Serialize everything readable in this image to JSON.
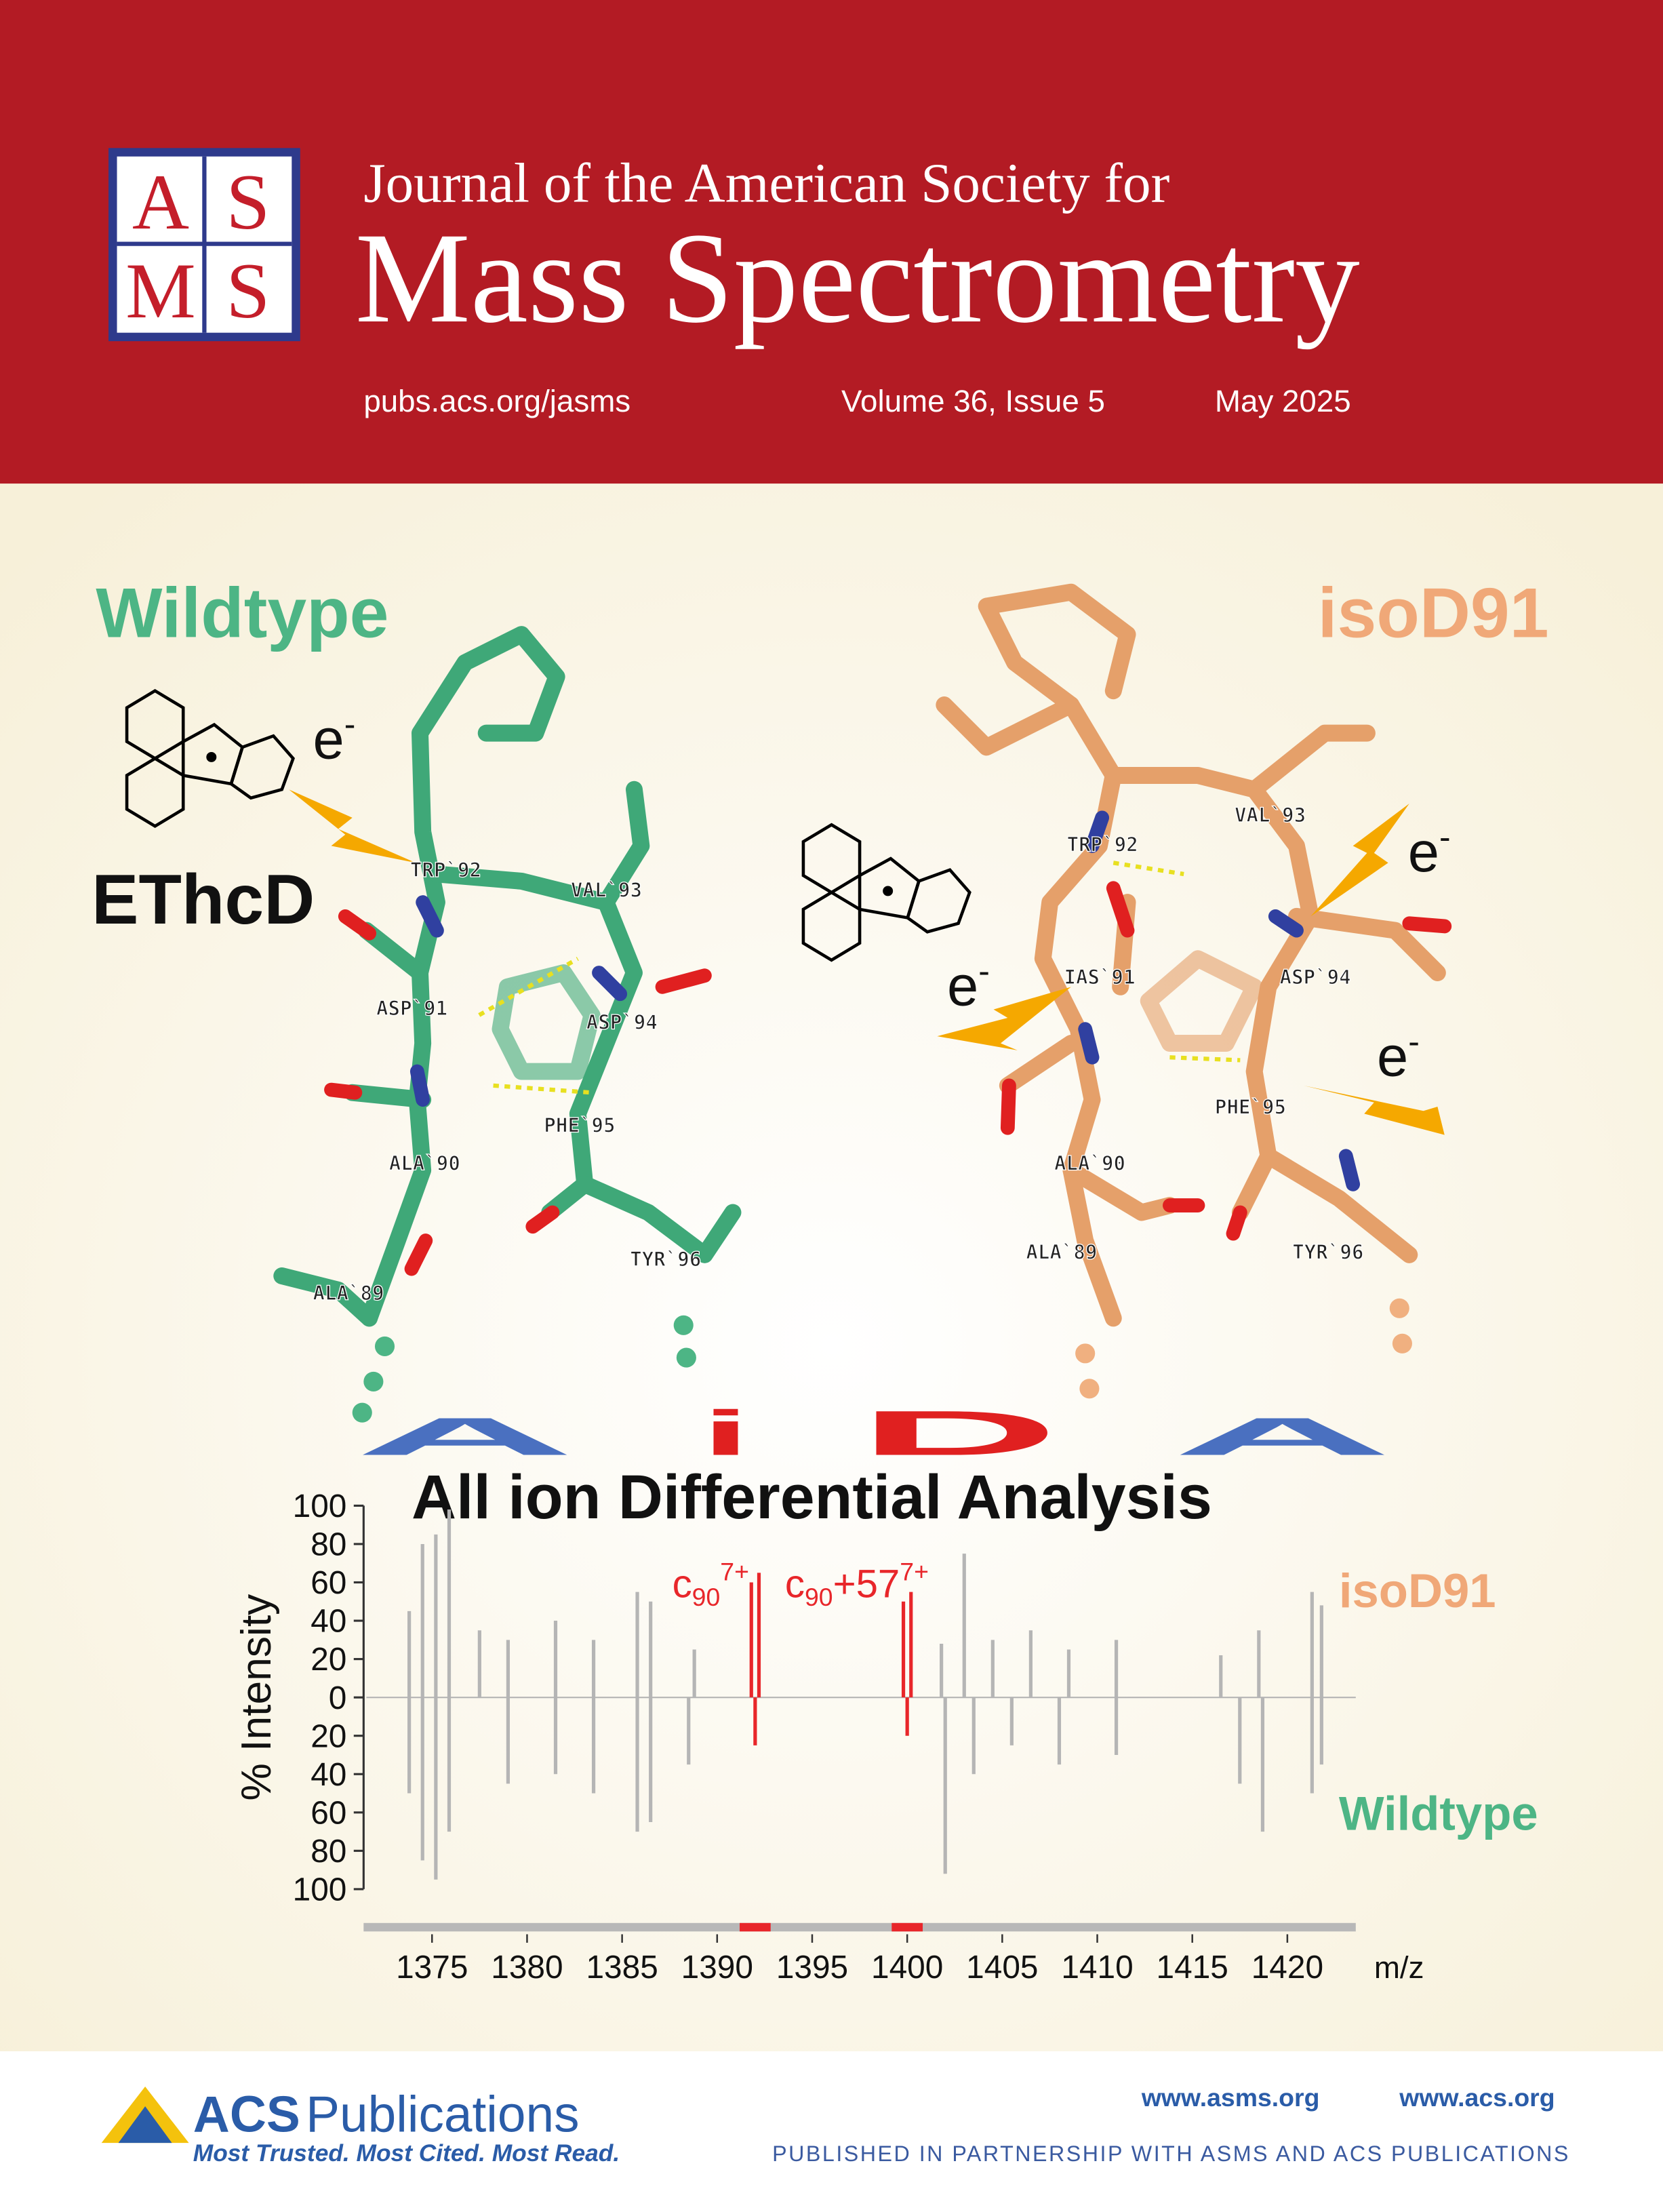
{
  "header": {
    "logo_letters": [
      "A",
      "S",
      "M",
      "S"
    ],
    "journal_line1": "Journal of the American Society for",
    "journal_line2": "Mass Spectrometry",
    "url": "pubs.acs.org/jasms",
    "volume": "Volume 36, Issue 5",
    "date": "May 2025"
  },
  "cover": {
    "left_label": "Wildtype",
    "right_label": "isoD91",
    "method": "EThcD",
    "electron_labels": [
      {
        "base": "e",
        "sup": "-"
      },
      {
        "base": "e",
        "sup": "-"
      },
      {
        "base": "e",
        "sup": "-"
      },
      {
        "base": "e",
        "sup": "-"
      }
    ],
    "left_residues": [
      "TRP`92",
      "VAL`93",
      "ASP`91",
      "ASP`94",
      "PHE`95",
      "ALA`90",
      "TYR`96",
      "ALA`89"
    ],
    "right_residues": [
      "TRP`92",
      "VAL`93",
      "IAS`91",
      "ASP`94",
      "PHE`95",
      "ALA`90",
      "ALA`89",
      "TYR`96"
    ],
    "logo_letters": [
      "A",
      "i",
      "D",
      "A"
    ],
    "logo_caption": "All ion Differential Analysis"
  },
  "chart_data": {
    "type": "spectrum",
    "xlabel": "m/z",
    "ylabel": "% Intensity",
    "xlim": [
      1371.4,
      1423.6
    ],
    "ylim": [
      -100,
      100
    ],
    "xticks": [
      1375,
      1380,
      1385,
      1390,
      1395,
      1400,
      1405,
      1410,
      1415,
      1420
    ],
    "yticks": [
      100,
      80,
      60,
      40,
      20,
      0,
      {
        "value": -20,
        "label": "20"
      },
      {
        "value": -40,
        "label": "40"
      },
      {
        "value": -60,
        "label": "60"
      },
      {
        "value": -80,
        "label": "80"
      },
      {
        "value": -100,
        "label": "100"
      }
    ],
    "peak_color": "#b5b5b5",
    "highlight_color": "#e8262a",
    "highlight_x": [
      1392,
      1400
    ],
    "annotations": [
      {
        "base": "c",
        "sub": "90",
        "sup": "7+"
      },
      {
        "base": "c",
        "sub": "90",
        "text": "+57",
        "sup": "7+"
      }
    ],
    "series": [
      {
        "name": "isoD91",
        "color": "#f0a878",
        "x": [
          1373.8,
          1374.5,
          1375.2,
          1375.9,
          1377.5,
          1379,
          1381.5,
          1383.5,
          1385.8,
          1386.5,
          1388.8,
          1391.8,
          1392.2,
          1399.8,
          1400.2,
          1401.8,
          1403,
          1404.5,
          1406.5,
          1408.5,
          1411,
          1416.5,
          1418.5,
          1421.3,
          1421.8
        ],
        "values": [
          45,
          80,
          85,
          98,
          35,
          30,
          40,
          30,
          55,
          50,
          25,
          60,
          65,
          50,
          55,
          28,
          75,
          30,
          35,
          25,
          30,
          22,
          35,
          55,
          48
        ]
      },
      {
        "name": "Wildtype",
        "color": "#4db585",
        "x": [
          1373.8,
          1374.5,
          1375.2,
          1375.9,
          1379,
          1381.5,
          1383.5,
          1385.8,
          1386.5,
          1388.5,
          1392,
          1400,
          1402,
          1403.5,
          1405.5,
          1408,
          1411,
          1417.5,
          1418.7,
          1421.3,
          1421.8
        ],
        "values": [
          -50,
          -85,
          -95,
          -70,
          -45,
          -40,
          -50,
          -70,
          -65,
          -35,
          -25,
          -20,
          -92,
          -40,
          -25,
          -35,
          -30,
          -45,
          -70,
          -50,
          -35
        ]
      }
    ]
  },
  "footer": {
    "brand_acs": "ACS",
    "brand_pub": "Publications",
    "tagline": "Most Trusted. Most Cited. Most Read.",
    "link1": "www.asms.org",
    "link2": "www.acs.org",
    "partnership": "PUBLISHED IN PARTNERSHIP WITH ASMS AND ACS PUBLICATIONS"
  }
}
